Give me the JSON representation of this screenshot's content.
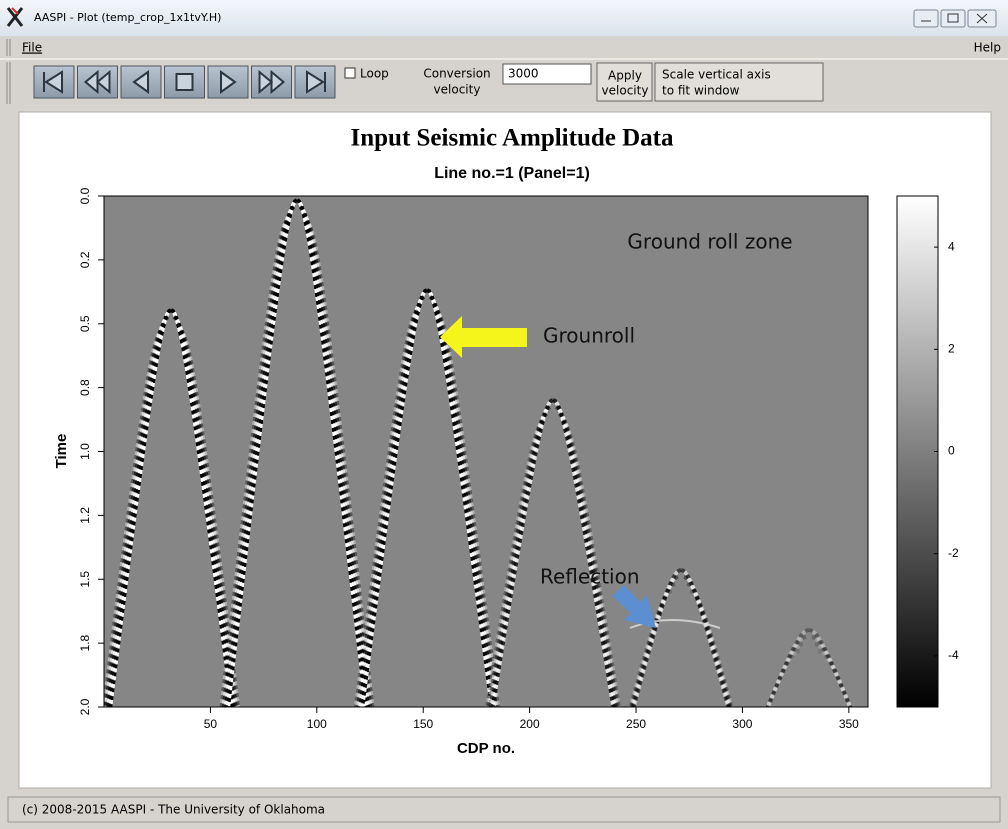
{
  "window": {
    "title": "AASPI - Plot (temp_crop_1x1tvY.H)"
  },
  "menu": [
    "File",
    "Help"
  ],
  "toolbar": {
    "loop": "Loop",
    "conversion_label": [
      "Conversion",
      "velocity"
    ],
    "conversion_velocity": "3000",
    "apply_button": [
      "Apply",
      "velocity"
    ],
    "scale_button": [
      "Scale vertical axis",
      "to fit window"
    ]
  },
  "chart_data": {
    "type": "image",
    "title": "Input Seismic Amplitude Data",
    "subtitle": "Line no.=1 (Panel=1)",
    "xlabel": "CDP no.",
    "ylabel": "Time",
    "xlim": [
      0,
      359
    ],
    "xticks": [
      50,
      100,
      150,
      200,
      250,
      300,
      350
    ],
    "ylim": [
      0,
      2
    ],
    "y_inverted": true,
    "yticks": [
      {
        "value": 0,
        "label": "0.0"
      },
      {
        "value": 0.25,
        "label": "0.2"
      },
      0.5,
      {
        "value": 0.75,
        "label": "0.8"
      },
      {
        "value": 1,
        "label": "1.0"
      },
      {
        "value": 1.25,
        "label": "1.2"
      },
      1.5,
      {
        "value": 1.75,
        "label": "1.8"
      },
      {
        "value": 2,
        "label": "2.0"
      }
    ],
    "colorbar": {
      "lim": [
        -5,
        5
      ],
      "ticks": [
        4,
        2,
        0,
        -2,
        -4
      ]
    },
    "annotations": [
      "Ground roll zone",
      "Grounroll",
      "Reflection"
    ]
  },
  "status": "(c) 2008-2015 AASPI - The University of Oklahoma"
}
